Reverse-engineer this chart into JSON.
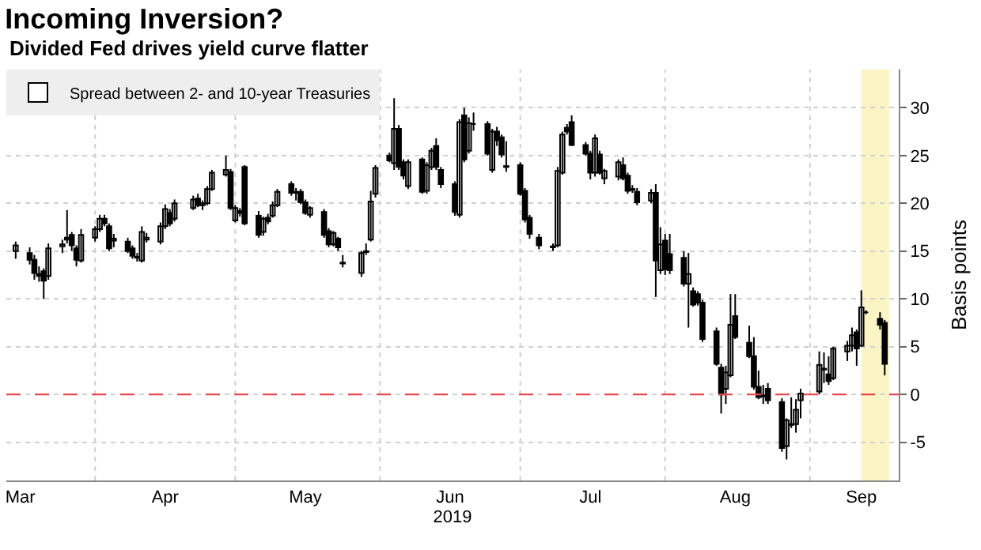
{
  "chart_data": {
    "type": "candlestick",
    "title": "Incoming Inversion?",
    "subtitle": "Divided Fed drives yield curve flatter",
    "ylabel": "Basis points",
    "xlabel": "2019",
    "x": [
      "2019-03-15",
      "2019-03-18",
      "2019-03-19",
      "2019-03-20",
      "2019-03-21",
      "2019-03-22",
      "2019-03-25",
      "2019-03-26",
      "2019-03-27",
      "2019-03-28",
      "2019-03-29",
      "2019-04-01",
      "2019-04-02",
      "2019-04-03",
      "2019-04-04",
      "2019-04-05",
      "2019-04-08",
      "2019-04-09",
      "2019-04-10",
      "2019-04-11",
      "2019-04-12",
      "2019-04-15",
      "2019-04-16",
      "2019-04-17",
      "2019-04-18",
      "2019-04-22",
      "2019-04-23",
      "2019-04-24",
      "2019-04-25",
      "2019-04-26",
      "2019-04-29",
      "2019-04-30",
      "2019-05-01",
      "2019-05-02",
      "2019-05-03",
      "2019-05-06",
      "2019-05-07",
      "2019-05-08",
      "2019-05-09",
      "2019-05-10",
      "2019-05-13",
      "2019-05-14",
      "2019-05-15",
      "2019-05-16",
      "2019-05-17",
      "2019-05-20",
      "2019-05-21",
      "2019-05-22",
      "2019-05-23",
      "2019-05-24",
      "2019-05-28",
      "2019-05-29",
      "2019-05-30",
      "2019-05-31",
      "2019-06-03",
      "2019-06-04",
      "2019-06-05",
      "2019-06-06",
      "2019-06-07",
      "2019-06-10",
      "2019-06-11",
      "2019-06-12",
      "2019-06-13",
      "2019-06-14",
      "2019-06-17",
      "2019-06-18",
      "2019-06-19",
      "2019-06-20",
      "2019-06-21",
      "2019-06-24",
      "2019-06-25",
      "2019-06-26",
      "2019-06-27",
      "2019-06-28",
      "2019-07-01",
      "2019-07-02",
      "2019-07-03",
      "2019-07-05",
      "2019-07-08",
      "2019-07-09",
      "2019-07-10",
      "2019-07-11",
      "2019-07-12",
      "2019-07-15",
      "2019-07-16",
      "2019-07-17",
      "2019-07-18",
      "2019-07-19",
      "2019-07-22",
      "2019-07-23",
      "2019-07-24",
      "2019-07-25",
      "2019-07-26",
      "2019-07-29",
      "2019-07-30",
      "2019-07-31",
      "2019-08-01",
      "2019-08-02",
      "2019-08-05",
      "2019-08-06",
      "2019-08-07",
      "2019-08-08",
      "2019-08-09",
      "2019-08-12",
      "2019-08-13",
      "2019-08-14",
      "2019-08-15",
      "2019-08-16",
      "2019-08-19",
      "2019-08-20",
      "2019-08-21",
      "2019-08-22",
      "2019-08-23",
      "2019-08-26",
      "2019-08-27",
      "2019-08-28",
      "2019-08-29",
      "2019-08-30",
      "2019-09-03",
      "2019-09-04",
      "2019-09-05",
      "2019-09-06",
      "2019-09-09",
      "2019-09-10",
      "2019-09-11",
      "2019-09-12",
      "2019-09-13",
      "2019-09-16",
      "2019-09-17"
    ],
    "series": [
      {
        "name": "Spread between 2- and 10-year Treasuries",
        "color": "#000000",
        "ohlc": [
          [
            15.0,
            16.0,
            14.2,
            15.6
          ],
          [
            14.8,
            15.4,
            13.6,
            14.1
          ],
          [
            14.1,
            14.6,
            12.0,
            12.7
          ],
          [
            12.6,
            13.4,
            11.8,
            12.4
          ],
          [
            12.9,
            13.2,
            10.0,
            11.9
          ],
          [
            12.4,
            15.8,
            12.0,
            15.3
          ],
          [
            15.5,
            16.2,
            14.8,
            15.7
          ],
          [
            16.2,
            19.3,
            15.8,
            16.4
          ],
          [
            16.7,
            17.0,
            15.0,
            15.6
          ],
          [
            15.3,
            15.6,
            13.4,
            14.1
          ],
          [
            14.0,
            17.3,
            13.8,
            16.7
          ],
          [
            16.4,
            17.6,
            16.0,
            17.3
          ],
          [
            17.3,
            18.8,
            17.0,
            18.4
          ],
          [
            18.4,
            18.8,
            17.6,
            17.9
          ],
          [
            17.6,
            17.9,
            15.0,
            15.3
          ],
          [
            16.1,
            16.8,
            15.4,
            16.3
          ],
          [
            16.0,
            16.4,
            14.8,
            15.0
          ],
          [
            15.3,
            15.6,
            14.2,
            14.5
          ],
          [
            14.4,
            14.8,
            13.9,
            14.3
          ],
          [
            14.0,
            17.6,
            13.8,
            17.0
          ],
          [
            16.2,
            16.9,
            15.9,
            16.4
          ],
          [
            16.0,
            18.0,
            15.7,
            17.6
          ],
          [
            17.6,
            19.9,
            17.3,
            19.4
          ],
          [
            19.0,
            19.4,
            17.6,
            17.9
          ],
          [
            18.4,
            20.4,
            18.1,
            20.0
          ],
          [
            19.5,
            20.8,
            19.3,
            20.4
          ],
          [
            20.5,
            21.0,
            19.6,
            19.8
          ],
          [
            19.8,
            20.3,
            19.3,
            20.0
          ],
          [
            20.0,
            21.8,
            19.8,
            21.5
          ],
          [
            21.5,
            23.5,
            21.3,
            23.2
          ],
          [
            23.0,
            25.0,
            22.8,
            23.5
          ],
          [
            23.3,
            23.6,
            19.3,
            19.5
          ],
          [
            18.2,
            19.8,
            18.0,
            19.5
          ],
          [
            19.2,
            19.5,
            18.6,
            19.0
          ],
          [
            23.8,
            24.0,
            17.7,
            17.9
          ],
          [
            18.7,
            19.2,
            16.4,
            16.7
          ],
          [
            17.0,
            18.6,
            16.6,
            18.4
          ],
          [
            18.5,
            18.9,
            17.8,
            18.1
          ],
          [
            18.7,
            20.2,
            18.5,
            19.8
          ],
          [
            19.8,
            21.5,
            19.6,
            21.2
          ],
          [
            22.0,
            22.3,
            20.8,
            21.1
          ],
          [
            21.1,
            21.6,
            20.3,
            21.2
          ],
          [
            21.2,
            21.5,
            19.9,
            20.1
          ],
          [
            20.1,
            20.4,
            18.8,
            19.0
          ],
          [
            18.8,
            19.7,
            18.5,
            19.5
          ],
          [
            19.1,
            19.4,
            16.4,
            16.7
          ],
          [
            17.1,
            17.4,
            15.4,
            15.7
          ],
          [
            15.7,
            17.1,
            15.5,
            16.9
          ],
          [
            16.3,
            16.5,
            15.0,
            15.4
          ],
          [
            13.8,
            14.6,
            13.3,
            13.7
          ],
          [
            12.7,
            15.0,
            12.3,
            14.8
          ],
          [
            14.9,
            15.8,
            14.6,
            15.0
          ],
          [
            16.2,
            21.3,
            16.0,
            20.2
          ],
          [
            21.0,
            24.0,
            20.6,
            23.7
          ],
          [
            25.0,
            25.3,
            24.3,
            24.5
          ],
          [
            24.2,
            31.0,
            23.5,
            27.8
          ],
          [
            27.8,
            28.2,
            23.5,
            23.8
          ],
          [
            24.3,
            24.6,
            22.5,
            22.9
          ],
          [
            21.8,
            24.6,
            21.5,
            24.3
          ],
          [
            24.6,
            24.8,
            21.0,
            21.2
          ],
          [
            21.3,
            24.3,
            21.0,
            24.0
          ],
          [
            23.8,
            25.8,
            23.5,
            25.5
          ],
          [
            26.0,
            26.8,
            23.5,
            23.8
          ],
          [
            23.5,
            23.8,
            21.6,
            22.0
          ],
          [
            22.0,
            22.3,
            18.7,
            19.1
          ],
          [
            18.8,
            28.8,
            18.5,
            28.5
          ],
          [
            29.2,
            30.0,
            24.3,
            24.6
          ],
          [
            25.5,
            29.0,
            25.2,
            28.4
          ],
          [
            28.3,
            29.5,
            27.6,
            28.3
          ],
          [
            28.3,
            28.6,
            25.0,
            25.2
          ],
          [
            23.5,
            27.8,
            23.2,
            27.5
          ],
          [
            27.5,
            28.0,
            26.0,
            26.6
          ],
          [
            26.9,
            27.2,
            24.8,
            25.1
          ],
          [
            23.9,
            26.5,
            23.3,
            23.8
          ],
          [
            24.0,
            24.3,
            20.8,
            21.0
          ],
          [
            21.3,
            21.6,
            18.0,
            18.3
          ],
          [
            18.5,
            18.8,
            16.3,
            16.8
          ],
          [
            16.4,
            16.8,
            15.2,
            15.6
          ],
          [
            15.5,
            15.8,
            15.0,
            15.4
          ],
          [
            15.6,
            23.8,
            15.4,
            23.4
          ],
          [
            23.2,
            27.5,
            23.0,
            27.2
          ],
          [
            27.9,
            28.3,
            27.2,
            27.5
          ],
          [
            28.5,
            29.2,
            26.0,
            26.1
          ],
          [
            26.1,
            26.4,
            25.0,
            25.2
          ],
          [
            25.2,
            25.5,
            22.5,
            23.2
          ],
          [
            23.2,
            27.2,
            22.8,
            26.8
          ],
          [
            25.1,
            25.5,
            23.0,
            23.2
          ],
          [
            22.6,
            23.6,
            22.0,
            23.4
          ],
          [
            22.8,
            24.6,
            22.4,
            24.3
          ],
          [
            24.0,
            24.8,
            22.4,
            22.6
          ],
          [
            22.9,
            23.2,
            21.0,
            21.3
          ],
          [
            21.4,
            21.9,
            21.1,
            21.5
          ],
          [
            21.2,
            21.6,
            19.8,
            20.1
          ],
          [
            20.3,
            21.5,
            20.0,
            21.1
          ],
          [
            21.1,
            22.0,
            10.2,
            14.0
          ],
          [
            13.0,
            17.5,
            12.6,
            15.7
          ],
          [
            16.1,
            16.8,
            12.5,
            13.1
          ],
          [
            14.7,
            16.8,
            12.6,
            13.0
          ],
          [
            14.3,
            15.0,
            11.3,
            11.6
          ],
          [
            11.6,
            14.8,
            7.0,
            12.6
          ],
          [
            10.8,
            11.2,
            9.2,
            9.4
          ],
          [
            10.5,
            10.8,
            9.3,
            9.6
          ],
          [
            9.6,
            9.9,
            5.5,
            5.8
          ],
          [
            6.6,
            7.0,
            3.0,
            3.2
          ],
          [
            2.8,
            3.2,
            -2.0,
            0.0
          ],
          [
            0.6,
            3.0,
            -1.0,
            2.3
          ],
          [
            2.0,
            10.5,
            1.8,
            7.3
          ],
          [
            8.2,
            10.5,
            5.8,
            6.0
          ],
          [
            5.4,
            7.2,
            3.8,
            4.0
          ],
          [
            4.0,
            6.0,
            0.5,
            0.8
          ],
          [
            0.8,
            2.5,
            -0.5,
            -0.3
          ],
          [
            -0.1,
            1.0,
            -1.0,
            -0.2
          ],
          [
            0.6,
            1.2,
            -1.0,
            -0.6
          ],
          [
            -0.8,
            -0.4,
            -6.0,
            -5.6
          ],
          [
            -5.4,
            -2.5,
            -6.8,
            -2.7
          ],
          [
            -3.2,
            -0.3,
            -3.5,
            -3.1
          ],
          [
            -3.1,
            -0.5,
            -4.0,
            -1.6
          ],
          [
            -0.6,
            0.6,
            -2.5,
            0.1
          ],
          [
            0.3,
            4.5,
            0.0,
            3.1
          ],
          [
            2.6,
            4.4,
            1.2,
            2.7
          ],
          [
            2.1,
            4.0,
            1.0,
            1.4
          ],
          [
            1.7,
            5.0,
            1.5,
            4.8
          ],
          [
            4.5,
            5.6,
            3.5,
            5.1
          ],
          [
            5.1,
            7.0,
            4.5,
            6.2
          ],
          [
            6.5,
            6.8,
            3.0,
            4.8
          ],
          [
            5.1,
            10.9,
            5.0,
            9.1
          ],
          [
            8.6,
            8.8,
            8.4,
            8.6
          ],
          [
            7.9,
            8.6,
            6.8,
            7.3
          ],
          [
            7.5,
            7.8,
            2.0,
            3.2
          ]
        ]
      }
    ],
    "xlim": [
      "2019-03-13",
      "2019-09-20"
    ],
    "xticks": [
      {
        "value": "2019-03-16",
        "label": "Mar"
      },
      {
        "value": "2019-04-01",
        "label": null
      },
      {
        "value": "2019-04-16",
        "label": "Apr"
      },
      {
        "value": "2019-05-01",
        "label": null
      },
      {
        "value": "2019-05-16",
        "label": "May"
      },
      {
        "value": "2019-06-01",
        "label": null
      },
      {
        "value": "2019-06-16",
        "label": "Jun"
      },
      {
        "value": "2019-07-01",
        "label": null
      },
      {
        "value": "2019-07-16",
        "label": "Jul"
      },
      {
        "value": "2019-08-01",
        "label": null
      },
      {
        "value": "2019-08-16",
        "label": "Aug"
      },
      {
        "value": "2019-09-01",
        "label": null
      },
      {
        "value": "2019-09-12",
        "label": "Sep"
      }
    ],
    "ylim": [
      -9,
      34
    ],
    "yticks": [
      -5,
      0,
      5,
      10,
      15,
      20,
      25,
      30
    ],
    "grid": true,
    "legend": "top left",
    "ref_lines": [
      {
        "axis": "y",
        "value": 0,
        "color": "#e8474f",
        "line_style": "dashed"
      }
    ],
    "bands": [
      {
        "axis": "x",
        "from": "2019-09-12",
        "to": "2019-09-18",
        "color": "#fbf4c4"
      }
    ]
  }
}
